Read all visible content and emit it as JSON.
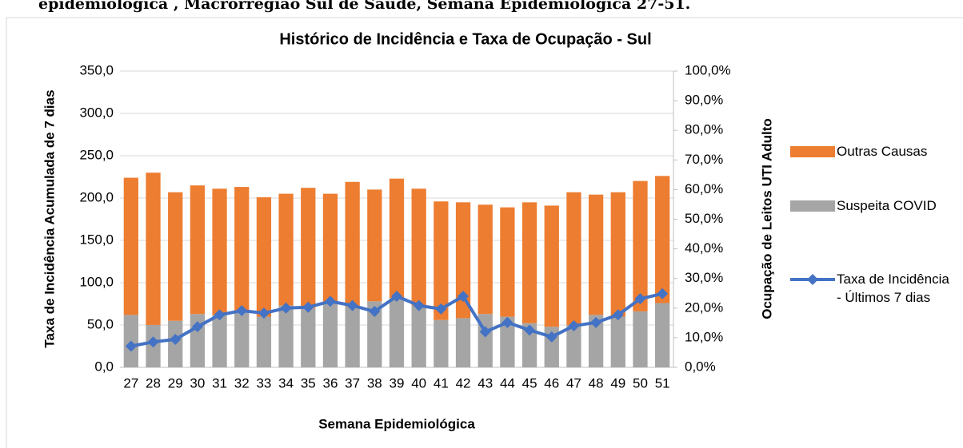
{
  "header": {
    "text": "epidemiológica , Macrorregião Sul de Saúde, Semana Epidemiológica 27-51."
  },
  "chart_data": {
    "type": "bar_line",
    "title": "Histórico de Incidência e Taxa de Ocupação - Sul",
    "x_label": "Semana Epidemiológica",
    "y_label": "Taxa de Incidência Acumulada de 7 dias",
    "y2_label": "Ocupação de Leitos UTI Adulto",
    "categories": [
      "27",
      "28",
      "29",
      "30",
      "31",
      "32",
      "33",
      "34",
      "35",
      "36",
      "37",
      "38",
      "39",
      "40",
      "41",
      "42",
      "43",
      "44",
      "45",
      "46",
      "47",
      "48",
      "49",
      "50",
      "51"
    ],
    "series": [
      {
        "name": "Suspeita COVID",
        "color": "#a5a5a5",
        "axis": "y2",
        "kind": "bar",
        "values": [
          17.7,
          14.3,
          15.7,
          18.0,
          17.7,
          19.1,
          17.1,
          20.9,
          20.0,
          22.0,
          20.6,
          22.3,
          23.4,
          20.9,
          16.0,
          16.6,
          18.0,
          17.1,
          14.9,
          13.7,
          14.3,
          17.7,
          17.1,
          18.9,
          21.7
        ]
      },
      {
        "name": "Outras Causas",
        "color": "#ed7d31",
        "axis": "y2",
        "kind": "bar",
        "values": [
          46.3,
          51.4,
          43.4,
          43.4,
          42.6,
          41.8,
          40.3,
          37.7,
          40.6,
          36.6,
          42.0,
          37.7,
          40.3,
          39.4,
          40.0,
          39.1,
          36.9,
          36.9,
          40.8,
          40.9,
          44.8,
          40.6,
          42.0,
          44.0,
          42.9
        ]
      },
      {
        "name": "Taxa de Incidência - Últimos 7 dias",
        "color": "#4472c4",
        "axis": "y",
        "kind": "line",
        "values": [
          25,
          30,
          33,
          48,
          62,
          67,
          64,
          70,
          71,
          78,
          73,
          66,
          84,
          73,
          69,
          84,
          42,
          53,
          44,
          36,
          49,
          53,
          62,
          81,
          87
        ]
      }
    ],
    "ylim": [
      0,
      350
    ],
    "yticks": [
      {
        "value": 0,
        "label": "0,0"
      },
      {
        "value": 50,
        "label": "50,0"
      },
      {
        "value": 100,
        "label": "100,0"
      },
      {
        "value": 150,
        "label": "150,0"
      },
      {
        "value": 200,
        "label": "200,0"
      },
      {
        "value": 250,
        "label": "250,0"
      },
      {
        "value": 300,
        "label": "300,0"
      },
      {
        "value": 350,
        "label": "350,0"
      }
    ],
    "y2lim": [
      0,
      100
    ],
    "y2ticks": [
      {
        "value": 0,
        "label": "0,0%"
      },
      {
        "value": 10,
        "label": "10,0%"
      },
      {
        "value": 20,
        "label": "20,0%"
      },
      {
        "value": 30,
        "label": "30,0%"
      },
      {
        "value": 40,
        "label": "40,0%"
      },
      {
        "value": 50,
        "label": "50,0%"
      },
      {
        "value": 60,
        "label": "60,0%"
      },
      {
        "value": 70,
        "label": "70,0%"
      },
      {
        "value": 80,
        "label": "80,0%"
      },
      {
        "value": 90,
        "label": "90,0%"
      },
      {
        "value": 100,
        "label": "100,0%"
      }
    ],
    "grid": true
  }
}
